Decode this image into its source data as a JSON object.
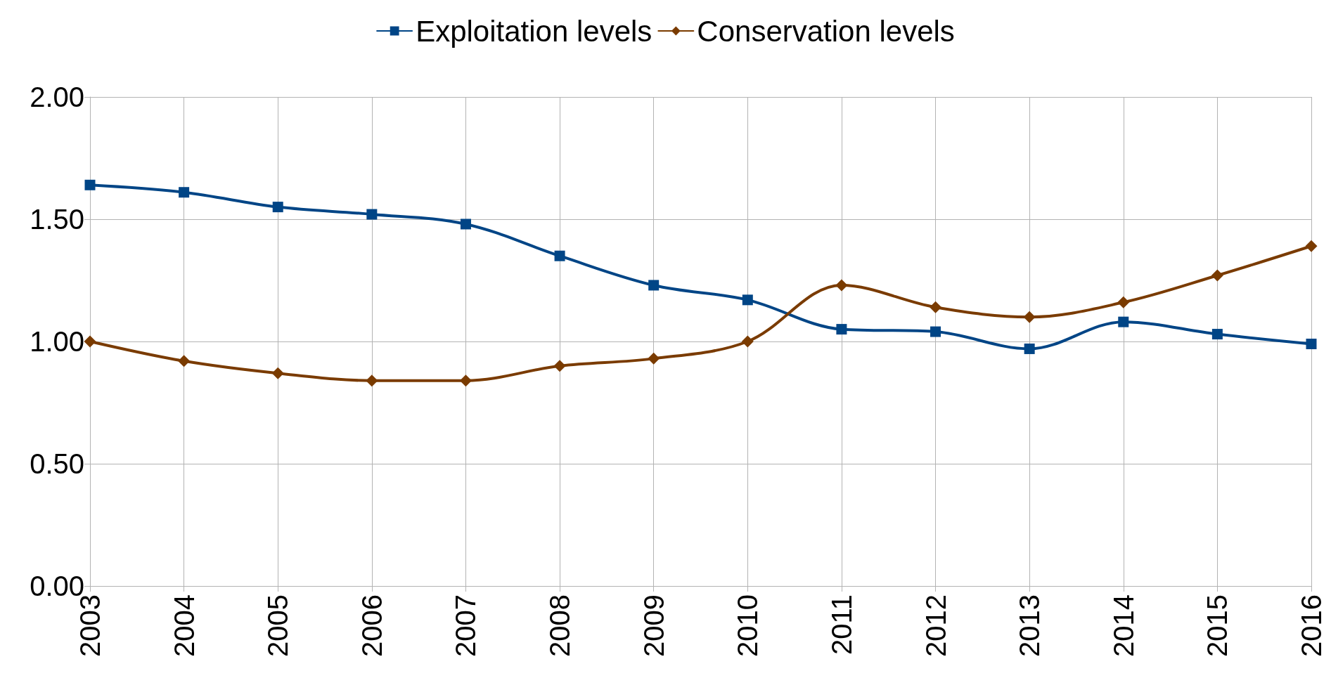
{
  "chart_data": {
    "type": "line",
    "categories": [
      "2003",
      "2004",
      "2005",
      "2006",
      "2007",
      "2008",
      "2009",
      "2010",
      "2011",
      "2012",
      "2013",
      "2014",
      "2015",
      "2016"
    ],
    "series": [
      {
        "name": "Exploitation levels",
        "color": "#004586",
        "marker": "square",
        "values": [
          1.64,
          1.61,
          1.55,
          1.52,
          1.48,
          1.35,
          1.23,
          1.17,
          1.05,
          1.04,
          0.97,
          1.08,
          1.03,
          0.99
        ]
      },
      {
        "name": "Conservation levels",
        "color": "#7a3b00",
        "marker": "diamond",
        "values": [
          1.0,
          0.92,
          0.87,
          0.84,
          0.84,
          0.9,
          0.93,
          1.0,
          1.23,
          1.14,
          1.1,
          1.16,
          1.27,
          1.39
        ]
      }
    ],
    "ylim": [
      0,
      2
    ],
    "yticks": [
      {
        "value": 0,
        "label": "0.00"
      },
      {
        "value": 0.5,
        "label": "0.50"
      },
      {
        "value": 1,
        "label": "1.00"
      },
      {
        "value": 1.5,
        "label": "1.50"
      },
      {
        "value": 2,
        "label": "2.00"
      }
    ],
    "grid": true,
    "legend": "top",
    "line_style": "solid"
  }
}
